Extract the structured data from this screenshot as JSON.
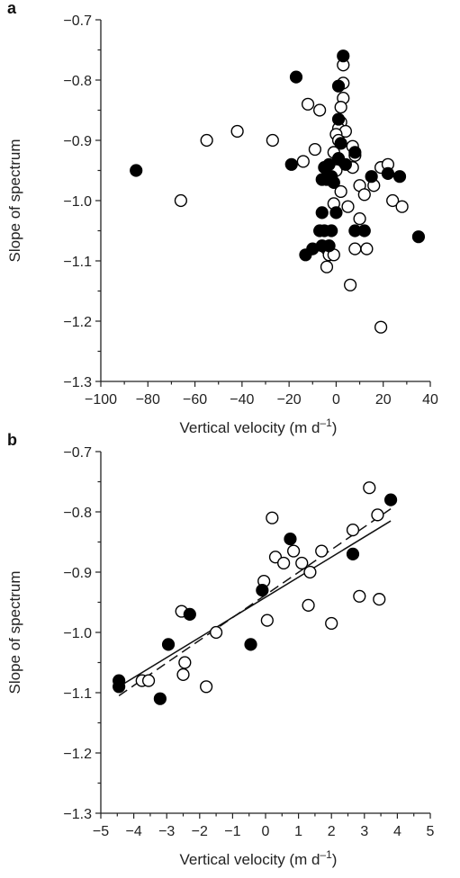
{
  "chart_data": [
    {
      "panel": "a",
      "type": "scatter",
      "xlabel": "Vertical velocity (m d",
      "xlabel_sup": "–1",
      "xlabel_end": ")",
      "ylabel": "Slope of spectrum",
      "xlim": [
        -100,
        40
      ],
      "ylim": [
        -1.3,
        -0.7
      ],
      "x_ticks": [
        -100,
        -80,
        -60,
        -40,
        -20,
        0,
        20,
        40
      ],
      "x_tick_labels": [
        "−100",
        "−80",
        "−60",
        "−40",
        "−20",
        "0",
        "20",
        "40"
      ],
      "y_ticks": [
        -0.7,
        -0.8,
        -0.9,
        -1.0,
        -1.1,
        -1.2,
        -1.3
      ],
      "y_tick_labels": [
        "−0.7",
        "−0.8",
        "−0.9",
        "−1.0",
        "−1.1",
        "−1.2",
        "−1.3"
      ],
      "grid": false,
      "series": [
        {
          "marker": "filled",
          "color": "#000000",
          "points": [
            [
              -85,
              -0.95
            ],
            [
              -17,
              -0.795
            ],
            [
              -19,
              -0.94
            ],
            [
              3,
              -0.76
            ],
            [
              1,
              -0.81
            ],
            [
              1,
              -0.865
            ],
            [
              2,
              -0.905
            ],
            [
              1,
              -0.93
            ],
            [
              -3,
              -0.94
            ],
            [
              -5,
              -0.945
            ],
            [
              -6,
              -0.965
            ],
            [
              -4,
              -0.965
            ],
            [
              -2,
              -0.96
            ],
            [
              -1,
              -0.97
            ],
            [
              4,
              -0.94
            ],
            [
              8,
              -0.92
            ],
            [
              15,
              -0.96
            ],
            [
              22,
              -0.955
            ],
            [
              27,
              -0.96
            ],
            [
              35,
              -1.06
            ],
            [
              -6,
              -1.02
            ],
            [
              0,
              -1.02
            ],
            [
              -7,
              -1.05
            ],
            [
              -5,
              -1.05
            ],
            [
              -2,
              -1.05
            ],
            [
              8,
              -1.05
            ],
            [
              12,
              -1.05
            ],
            [
              -13,
              -1.09
            ],
            [
              -10,
              -1.08
            ],
            [
              -6,
              -1.075
            ],
            [
              -3,
              -1.075
            ]
          ]
        },
        {
          "marker": "open",
          "color": "#000000",
          "points": [
            [
              -66,
              -1.0
            ],
            [
              -55,
              -0.9
            ],
            [
              -42,
              -0.885
            ],
            [
              -27,
              -0.9
            ],
            [
              -14,
              -0.935
            ],
            [
              -12,
              -0.84
            ],
            [
              -7,
              -0.85
            ],
            [
              -9,
              -0.915
            ],
            [
              3,
              -0.775
            ],
            [
              3,
              -0.805
            ],
            [
              3,
              -0.83
            ],
            [
              2,
              -0.845
            ],
            [
              2,
              -0.87
            ],
            [
              1,
              -0.88
            ],
            [
              4,
              -0.885
            ],
            [
              0,
              -0.89
            ],
            [
              1,
              -0.9
            ],
            [
              -1,
              -0.92
            ],
            [
              7,
              -0.91
            ],
            [
              8,
              -0.925
            ],
            [
              0,
              -0.95
            ],
            [
              2,
              -0.985
            ],
            [
              7,
              -0.945
            ],
            [
              10,
              -0.975
            ],
            [
              12,
              -0.99
            ],
            [
              16,
              -0.975
            ],
            [
              19,
              -0.945
            ],
            [
              22,
              -0.94
            ],
            [
              24,
              -1.0
            ],
            [
              28,
              -1.01
            ],
            [
              5,
              -1.01
            ],
            [
              10,
              -1.03
            ],
            [
              -1,
              -1.005
            ],
            [
              -4,
              -1.08
            ],
            [
              -3,
              -1.09
            ],
            [
              -1,
              -1.09
            ],
            [
              8,
              -1.08
            ],
            [
              13,
              -1.08
            ],
            [
              -4,
              -1.11
            ],
            [
              6,
              -1.14
            ],
            [
              19,
              -1.21
            ]
          ]
        }
      ]
    },
    {
      "panel": "b",
      "type": "scatter",
      "xlabel": "Vertical velocity (m d",
      "xlabel_sup": "–1",
      "xlabel_end": ")",
      "ylabel": "Slope of spectrum",
      "xlim": [
        -5,
        5
      ],
      "ylim": [
        -1.3,
        -0.7
      ],
      "x_ticks": [
        -5,
        -4,
        -3,
        -2,
        -1,
        0,
        1,
        2,
        3,
        4,
        5
      ],
      "x_tick_labels": [
        "−5",
        "−4",
        "−3",
        "−2",
        "−1",
        "0",
        "1",
        "2",
        "3",
        "4",
        "5"
      ],
      "y_ticks": [
        -0.7,
        -0.8,
        -0.9,
        -1.0,
        -1.1,
        -1.2,
        -1.3
      ],
      "y_tick_labels": [
        "−0.7",
        "−0.8",
        "−0.9",
        "−1.0",
        "−1.1",
        "−1.2",
        "−1.3"
      ],
      "grid": false,
      "series": [
        {
          "marker": "filled",
          "color": "#000000",
          "points": [
            [
              -4.45,
              -1.08
            ],
            [
              -4.45,
              -1.09
            ],
            [
              -3.2,
              -1.11
            ],
            [
              -2.95,
              -1.02
            ],
            [
              -2.3,
              -0.97
            ],
            [
              -0.45,
              -1.02
            ],
            [
              -0.1,
              -0.93
            ],
            [
              0.75,
              -0.845
            ],
            [
              2.65,
              -0.87
            ],
            [
              3.8,
              -0.78
            ]
          ]
        },
        {
          "marker": "open",
          "color": "#000000",
          "points": [
            [
              -3.75,
              -1.08
            ],
            [
              -3.55,
              -1.08
            ],
            [
              -2.55,
              -0.965
            ],
            [
              -2.5,
              -1.07
            ],
            [
              -2.45,
              -1.05
            ],
            [
              -1.8,
              -1.09
            ],
            [
              -1.5,
              -1.0
            ],
            [
              -0.05,
              -0.915
            ],
            [
              0.05,
              -0.98
            ],
            [
              0.2,
              -0.81
            ],
            [
              0.3,
              -0.875
            ],
            [
              0.55,
              -0.885
            ],
            [
              0.85,
              -0.865
            ],
            [
              1.1,
              -0.885
            ],
            [
              1.3,
              -0.955
            ],
            [
              1.35,
              -0.9
            ],
            [
              1.7,
              -0.865
            ],
            [
              2.0,
              -0.985
            ],
            [
              2.65,
              -0.83
            ],
            [
              2.85,
              -0.94
            ],
            [
              3.15,
              -0.76
            ],
            [
              3.4,
              -0.805
            ],
            [
              3.45,
              -0.945
            ]
          ]
        }
      ],
      "lines": [
        {
          "style": "solid",
          "x": [
            -4.45,
            3.8
          ],
          "y": [
            -1.09,
            -0.815
          ]
        },
        {
          "style": "dashed",
          "x": [
            -4.45,
            3.8
          ],
          "y": [
            -1.105,
            -0.795
          ]
        }
      ]
    }
  ]
}
